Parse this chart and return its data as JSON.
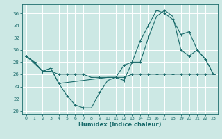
{
  "xlabel": "Humidex (Indice chaleur)",
  "bg_color": "#cce8e4",
  "grid_color": "#ffffff",
  "line_color": "#1a6b6b",
  "xlim": [
    -0.5,
    23.5
  ],
  "ylim": [
    19.5,
    37.5
  ],
  "xticks": [
    0,
    1,
    2,
    3,
    4,
    5,
    6,
    7,
    8,
    9,
    10,
    11,
    12,
    13,
    14,
    15,
    16,
    17,
    18,
    19,
    20,
    21,
    22,
    23
  ],
  "yticks": [
    20,
    22,
    24,
    26,
    28,
    30,
    32,
    34,
    36
  ],
  "line1_x": [
    0,
    1,
    2,
    3,
    4,
    5,
    6,
    7,
    8,
    9,
    10,
    11,
    12,
    13,
    14,
    15,
    16,
    17,
    18,
    19,
    20,
    21,
    22,
    23
  ],
  "line1_y": [
    29,
    28,
    26.5,
    26.5,
    26,
    26,
    26,
    26,
    25.5,
    25.5,
    25.5,
    25.5,
    25.5,
    26,
    26,
    26,
    26,
    26,
    26,
    26,
    26,
    26,
    26,
    26
  ],
  "line2_x": [
    0,
    1,
    2,
    3,
    4,
    5,
    6,
    7,
    8,
    9,
    10,
    11,
    12,
    13,
    14,
    15,
    16,
    17,
    18,
    19,
    20,
    21,
    22,
    23
  ],
  "line2_y": [
    29,
    28,
    26.5,
    27,
    24.5,
    22.5,
    21,
    20.5,
    20.5,
    23,
    25,
    25.5,
    25,
    28,
    28,
    32,
    35.5,
    36.5,
    35.5,
    30,
    29,
    30,
    28.5,
    26
  ],
  "line3_x": [
    0,
    2,
    3,
    4,
    10,
    11,
    12,
    13,
    14,
    15,
    16,
    17,
    18,
    19,
    20,
    21,
    22,
    23
  ],
  "line3_y": [
    29,
    26.5,
    27,
    24.5,
    25.5,
    25.5,
    27.5,
    28,
    31.5,
    34,
    36.5,
    36,
    35,
    32.5,
    33,
    30,
    28.5,
    26
  ]
}
